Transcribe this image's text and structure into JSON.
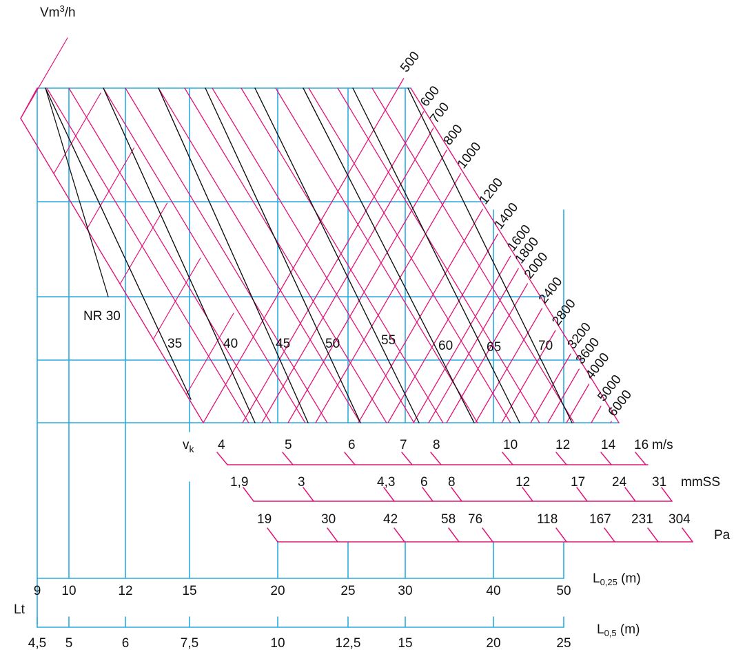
{
  "chart_data": {
    "type": "nomogram",
    "labels": {
      "flow_unit_main": "Vm",
      "flow_unit_sup": "3",
      "flow_unit_tail": "/h",
      "nr_prefix": "NR 30",
      "vk_main": "v",
      "vk_sub": "k",
      "lt": "Lt",
      "l025_main": "L",
      "l025_sub": "0,25",
      "l025_tail": " (m)",
      "l05_main": "L",
      "l05_sub": "0,5",
      "l05_tail": " (m)"
    },
    "airflow_m3h": [
      "500",
      "600",
      "700",
      "800",
      "1000",
      "1200",
      "1400",
      "1600",
      "1800",
      "2000",
      "2400",
      "2800",
      "3200",
      "3600",
      "4000",
      "5000",
      "6000"
    ],
    "noise_nr": [
      "35",
      "40",
      "45",
      "50",
      "55",
      "60",
      "65",
      "70"
    ],
    "velocity_scale": {
      "unit": "m/s",
      "ticks": [
        "4",
        "5",
        "6",
        "7",
        "8",
        "10",
        "12",
        "14",
        "16"
      ]
    },
    "pressure_mmss_scale": {
      "unit": "mmSS",
      "ticks": [
        "1,9",
        "3",
        "4,3",
        "6",
        "8",
        "12",
        "17",
        "24",
        "31"
      ]
    },
    "pressure_pa_scale": {
      "unit": "Pa",
      "ticks": [
        "19",
        "30",
        "42",
        "58",
        "76",
        "118",
        "167",
        "231",
        "304"
      ]
    },
    "throw_l025_m": [
      "9",
      "10",
      "12",
      "15",
      "20",
      "25",
      "30",
      "40",
      "50"
    ],
    "throw_l05_m": [
      "4,5",
      "5",
      "6",
      "7,5",
      "10",
      "12,5",
      "15",
      "20",
      "25"
    ],
    "colors": {
      "grid": "#29abe2",
      "flow_lines": "#e0157a",
      "noise_lines": "#111111",
      "text": "#111111"
    }
  }
}
